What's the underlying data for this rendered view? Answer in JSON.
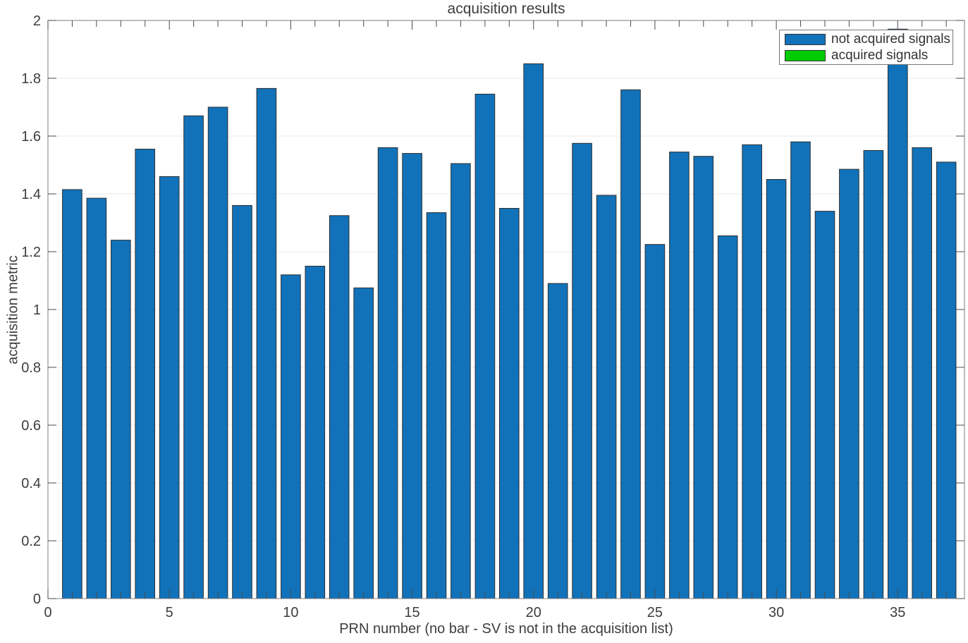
{
  "chart_data": {
    "type": "bar",
    "title": "acquisition results",
    "xlabel": "PRN number (no bar - SV is not in the acquisition list)",
    "ylabel": "acquisition metric",
    "xlim": [
      0,
      37.75
    ],
    "ylim": [
      0,
      2
    ],
    "xticks": [
      0,
      5,
      10,
      15,
      20,
      25,
      30,
      35
    ],
    "yticks": [
      0,
      0.2,
      0.4,
      0.6,
      0.8,
      1.0,
      1.2,
      1.4,
      1.6,
      1.8,
      2.0
    ],
    "minor_xtick_step": 1,
    "grid": "horizontal",
    "legend_position": "top-right",
    "categories": [
      1,
      2,
      3,
      4,
      5,
      6,
      7,
      8,
      9,
      10,
      11,
      12,
      13,
      14,
      15,
      16,
      17,
      18,
      19,
      20,
      21,
      22,
      23,
      24,
      25,
      26,
      27,
      28,
      29,
      30,
      31,
      32,
      33,
      34,
      35,
      36,
      37
    ],
    "series": [
      {
        "name": "not acquired signals",
        "color": "#1172BA",
        "values": [
          1.415,
          1.385,
          1.24,
          1.555,
          1.46,
          1.67,
          1.7,
          1.36,
          1.765,
          1.12,
          1.15,
          1.325,
          1.075,
          1.56,
          1.54,
          1.335,
          1.505,
          1.745,
          1.35,
          1.85,
          1.09,
          1.575,
          1.395,
          1.76,
          1.225,
          1.545,
          1.53,
          1.255,
          1.57,
          1.45,
          1.58,
          1.34,
          1.485,
          1.55,
          1.97,
          1.56,
          1.51
        ]
      },
      {
        "name": "acquired signals",
        "color": "#00CC00",
        "values": []
      }
    ],
    "bar_edge_color": "#2E2E2E",
    "grid_color": "#E8E8E8",
    "axis_box_color": "#7E7E7E",
    "tick_color": "#4A4A4A",
    "text_color": "#3D3D3D"
  }
}
